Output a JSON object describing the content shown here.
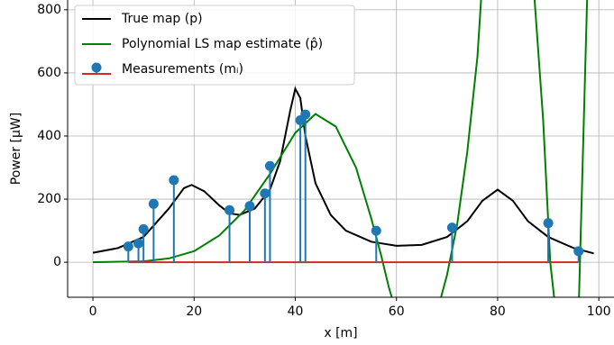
{
  "chart_data": {
    "type": "line",
    "xlabel": "x [m]",
    "ylabel": "Power [μW]",
    "xlim": [
      -5,
      103
    ],
    "ylim": [
      -111,
      831
    ],
    "xticks": [
      0,
      20,
      40,
      60,
      80,
      100
    ],
    "yticks": [
      0,
      200,
      400,
      600,
      800
    ],
    "grid": true,
    "legend": "upper left",
    "series": [
      {
        "name": "True map (p)",
        "color": "#000000",
        "type": "line",
        "x": [
          0,
          5,
          10,
          15,
          18,
          19.5,
          22,
          25,
          27,
          29,
          32,
          35,
          37,
          39,
          40,
          41,
          42,
          44,
          47,
          50,
          55,
          60,
          65,
          70,
          74,
          77,
          80,
          83,
          86,
          90,
          95,
          99
        ],
        "values": [
          30,
          45,
          80,
          170,
          235,
          245,
          225,
          180,
          155,
          150,
          170,
          230,
          320,
          480,
          550,
          520,
          400,
          250,
          150,
          100,
          65,
          52,
          55,
          80,
          130,
          195,
          230,
          195,
          130,
          80,
          45,
          28
        ]
      },
      {
        "name": "Polynomial LS map estimate (p̂)",
        "color": "#008000",
        "type": "line",
        "x": [
          0,
          10,
          15,
          20,
          25,
          30,
          35,
          40,
          44,
          48,
          52,
          55,
          57,
          58.5,
          60,
          68,
          70,
          72,
          74,
          76,
          77,
          87,
          89,
          90.4,
          91.5,
          96,
          97.8
        ],
        "values": [
          0,
          3,
          12,
          35,
          85,
          165,
          280,
          410,
          470,
          430,
          300,
          140,
          20,
          -80,
          -160,
          -160,
          -40,
          120,
          350,
          650,
          900,
          900,
          450,
          0,
          -160,
          -160,
          900
        ]
      },
      {
        "name": "Measurements (mᵢ)",
        "color": "#1f77b4",
        "type": "stem",
        "baseline": 0,
        "baseline_color": "#d62728",
        "x": [
          7,
          9,
          10,
          12,
          16,
          27,
          31,
          34,
          35,
          41,
          42,
          56,
          71,
          90,
          96
        ],
        "values": [
          50,
          60,
          105,
          185,
          260,
          165,
          178,
          218,
          305,
          450,
          468,
          100,
          110,
          124,
          35
        ]
      }
    ]
  }
}
